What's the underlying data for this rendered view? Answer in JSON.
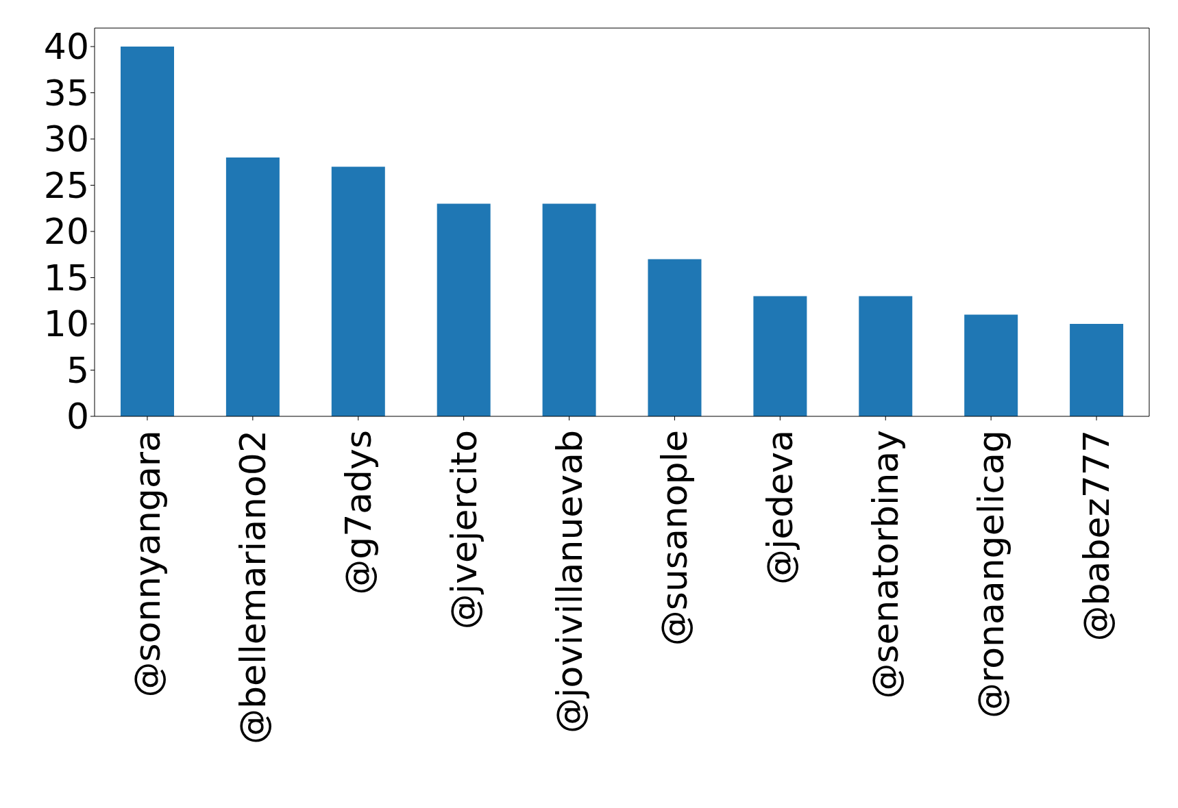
{
  "chart_data": {
    "type": "bar",
    "categories": [
      "@sonnyangara",
      "@bellemariano02",
      "@g7adys",
      "@jvejercito",
      "@jovivillanuevab",
      "@susanople",
      "@jedeva",
      "@senatorbinay",
      "@ronaangelicag",
      "@babez777"
    ],
    "values": [
      40,
      28,
      27,
      23,
      23,
      17,
      13,
      13,
      11,
      10
    ],
    "color": "#1f77b4",
    "ylim": [
      0,
      42
    ],
    "yticks": [
      0,
      5,
      10,
      15,
      20,
      25,
      30,
      35,
      40
    ],
    "grid": false,
    "legend": false
  }
}
